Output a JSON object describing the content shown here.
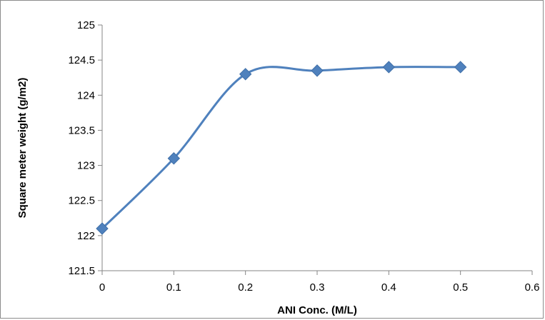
{
  "chart_data": {
    "type": "scatter",
    "xlabel": "ANI Conc. (M/L)",
    "ylabel": "Square meter weight (g/m2)",
    "xlim": [
      0,
      0.6
    ],
    "ylim": [
      121.5,
      125
    ],
    "x_ticks": [
      "0",
      "0.1",
      "0.2",
      "0.3",
      "0.4",
      "0.5",
      "0.6"
    ],
    "y_ticks": [
      "121.5",
      "122",
      "122.5",
      "123",
      "123.5",
      "124",
      "124.5",
      "125"
    ],
    "series": [
      {
        "x": [
          0,
          0.1,
          0.2,
          0.3,
          0.4,
          0.5
        ],
        "y": [
          122.1,
          123.1,
          124.3,
          124.35,
          124.4,
          124.4
        ],
        "color": "#4f81bd",
        "marker": "diamond",
        "line": "smooth"
      }
    ],
    "grid": false,
    "legend": "none"
  }
}
